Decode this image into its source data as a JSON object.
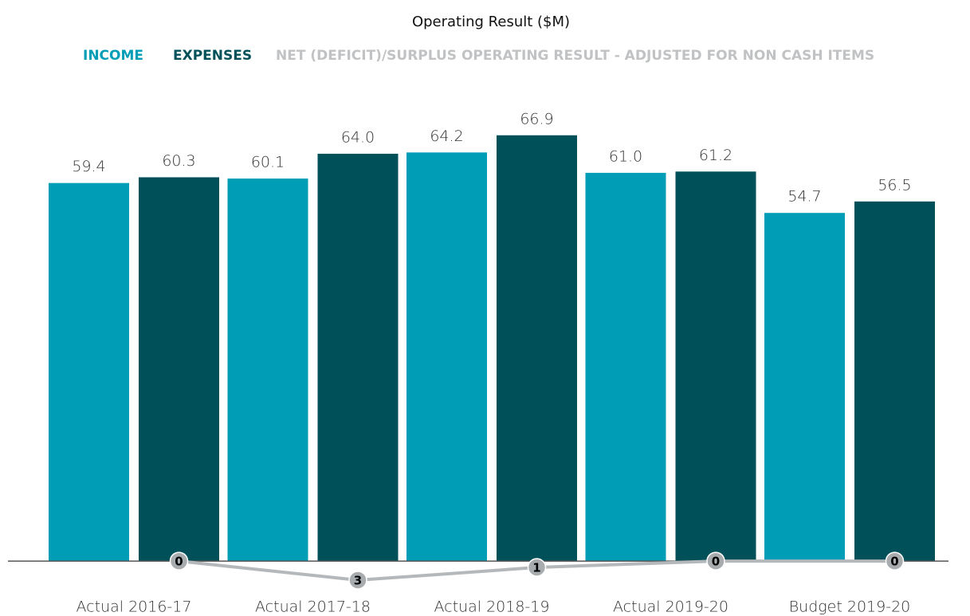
{
  "chart_data": {
    "type": "bar",
    "title": "Operating Result ($M)",
    "categories": [
      "Actual 2016-17",
      "Actual 2017-18",
      "Actual 2018-19",
      "Actual 2019-20",
      "Budget 2019-20"
    ],
    "series": [
      {
        "name": "INCOME",
        "type": "bar",
        "color": "#009eb6",
        "values": [
          59.4,
          60.1,
          64.2,
          61.0,
          54.7
        ],
        "value_labels": [
          "59.4",
          "60.1",
          "64.2",
          "61.0",
          "54.7"
        ]
      },
      {
        "name": "EXPENSES",
        "type": "bar",
        "color": "#00505a",
        "values": [
          60.3,
          64.0,
          66.9,
          61.2,
          56.5
        ],
        "value_labels": [
          "60.3",
          "64.0",
          "66.9",
          "61.2",
          "56.5"
        ]
      },
      {
        "name": "NET (DEFICIT)/SURPLUS OPERATING RESULT - ADJUSTED FOR NON CASH ITEMS",
        "type": "line",
        "color": "#b5b8ba",
        "values": [
          0,
          -3,
          -1,
          0,
          0
        ],
        "value_labels": [
          "0",
          "3",
          "1",
          "0",
          "0"
        ]
      }
    ],
    "ylim": [
      -5,
      70
    ]
  }
}
